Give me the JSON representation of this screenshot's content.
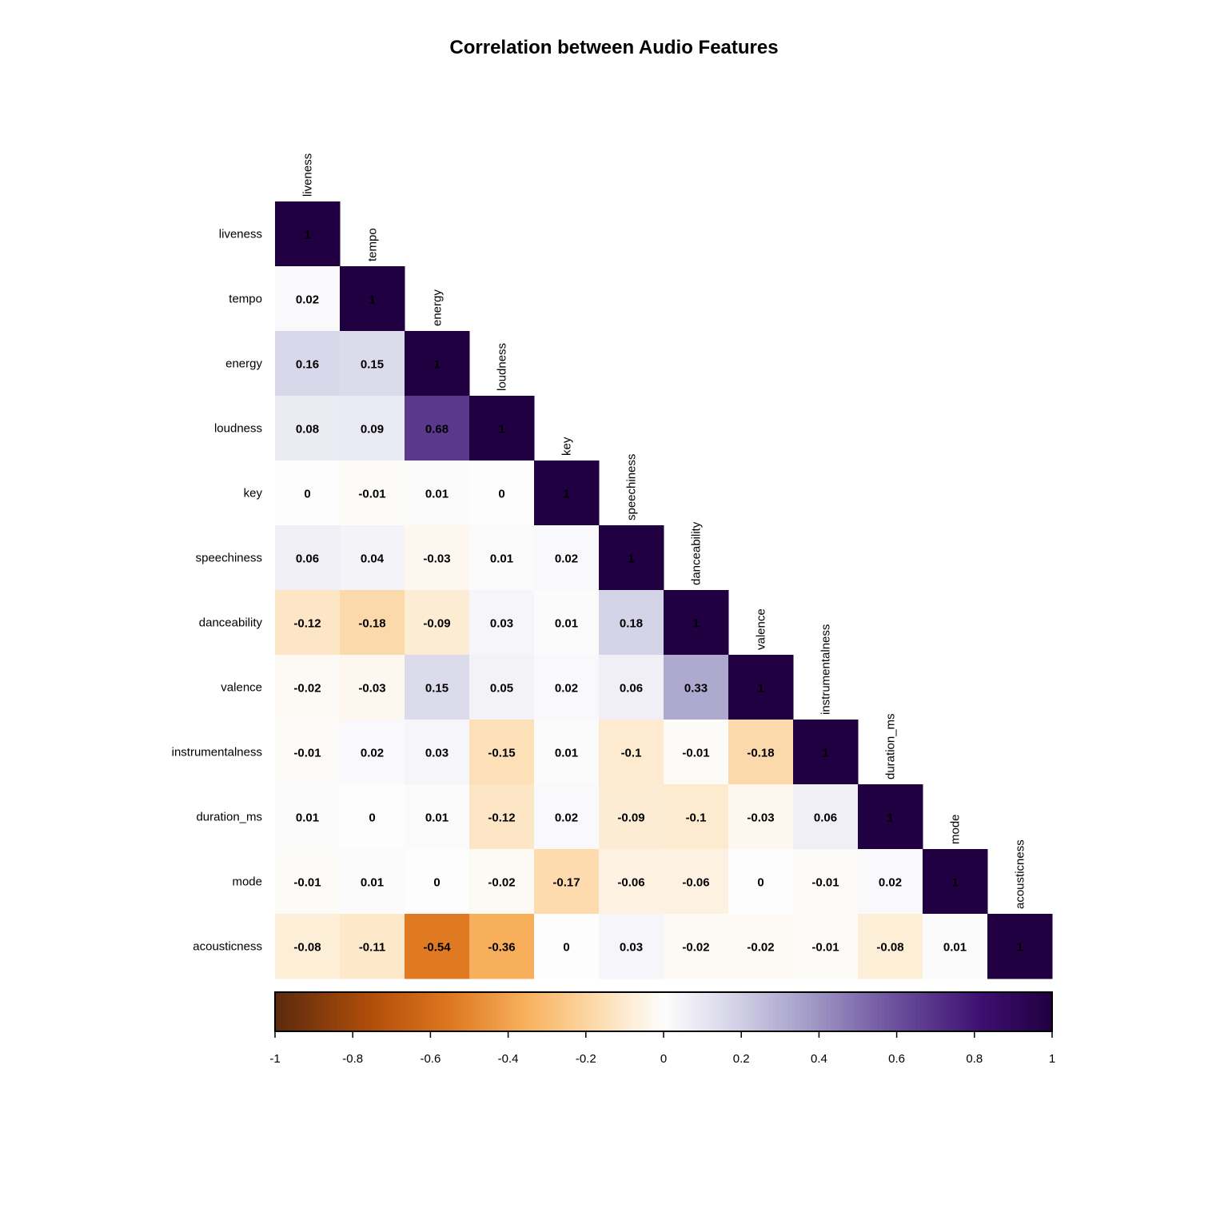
{
  "chart_data": {
    "type": "heatmap",
    "title": "Correlation between Audio Features",
    "variables": [
      "liveness",
      "tempo",
      "energy",
      "loudness",
      "key",
      "speechiness",
      "danceability",
      "valence",
      "instrumentalness",
      "duration_ms",
      "mode",
      "acousticness"
    ],
    "matrix_lower": [
      [
        1
      ],
      [
        0.02,
        1
      ],
      [
        0.16,
        0.15,
        1
      ],
      [
        0.08,
        0.09,
        0.68,
        1
      ],
      [
        0,
        -0.01,
        0.01,
        0,
        1
      ],
      [
        0.06,
        0.04,
        -0.03,
        0.01,
        0.02,
        1
      ],
      [
        -0.12,
        -0.18,
        -0.09,
        0.03,
        0.01,
        0.18,
        1
      ],
      [
        -0.02,
        -0.03,
        0.15,
        0.05,
        0.02,
        0.06,
        0.33,
        1
      ],
      [
        -0.01,
        0.02,
        0.03,
        -0.15,
        0.01,
        -0.1,
        -0.01,
        -0.18,
        1
      ],
      [
        0.01,
        0,
        0.01,
        -0.12,
        0.02,
        -0.09,
        -0.1,
        -0.03,
        0.06,
        1
      ],
      [
        -0.01,
        0.01,
        0,
        -0.02,
        -0.17,
        -0.06,
        -0.06,
        0,
        -0.01,
        0.02,
        1
      ],
      [
        -0.08,
        -0.11,
        -0.54,
        -0.36,
        0,
        0.03,
        -0.02,
        -0.02,
        -0.01,
        -0.08,
        0.01,
        1
      ]
    ],
    "color_scale": {
      "range": [
        -1,
        1
      ],
      "ticks": [
        "-1",
        "-0.8",
        "-0.6",
        "-0.4",
        "-0.2",
        "0",
        "0.2",
        "0.4",
        "0.6",
        "0.8",
        "1"
      ],
      "stops": [
        {
          "v": -1.0,
          "color": "#5a2a0d"
        },
        {
          "v": -0.75,
          "color": "#b34e0a"
        },
        {
          "v": -0.55,
          "color": "#de7720"
        },
        {
          "v": -0.35,
          "color": "#f8b25e"
        },
        {
          "v": -0.15,
          "color": "#fde0b8"
        },
        {
          "v": 0.0,
          "color": "#fdfdfd"
        },
        {
          "v": 0.15,
          "color": "#dcdbec"
        },
        {
          "v": 0.35,
          "color": "#a9a3cc"
        },
        {
          "v": 0.6,
          "color": "#6a4f9c"
        },
        {
          "v": 0.82,
          "color": "#3d0f70"
        },
        {
          "v": 1.0,
          "color": "#200040"
        }
      ]
    },
    "legend_placement": "bottom"
  }
}
